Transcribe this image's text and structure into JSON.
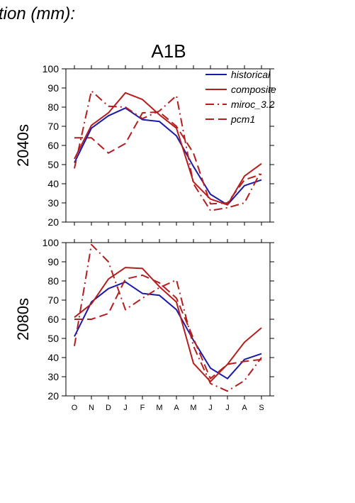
{
  "page_title": "tion (mm):",
  "scenario": "A1B",
  "colors": {
    "historical": "#1a1aaa",
    "model": "#b41e1e"
  },
  "chart_data": [
    {
      "type": "line",
      "row_label": "2040s",
      "categories": [
        "O",
        "N",
        "D",
        "J",
        "F",
        "M",
        "A",
        "M",
        "J",
        "J",
        "A",
        "S"
      ],
      "ylim": [
        20,
        100
      ],
      "yticks": [
        20,
        30,
        40,
        50,
        60,
        70,
        80,
        90,
        100
      ],
      "grid": false,
      "legend_position": "top-right",
      "series": [
        {
          "name": "historical",
          "style": "solid",
          "color": "#1a1aaa",
          "values": [
            51,
            69,
            75.5,
            79.5,
            73.5,
            72.5,
            65,
            49,
            34.5,
            29,
            39,
            42
          ]
        },
        {
          "name": "composite",
          "style": "solid",
          "color": "#b41e1e",
          "values": [
            53,
            70.5,
            77,
            87.5,
            84,
            76,
            69,
            41,
            32,
            29,
            44,
            50.5
          ]
        },
        {
          "name": "miroc_3.2",
          "style": "dashdot",
          "color": "#b41e1e",
          "values": [
            48,
            88.5,
            80.5,
            80,
            74,
            78,
            86,
            40,
            26,
            27.5,
            30,
            47
          ]
        },
        {
          "name": "pcm1",
          "style": "dash",
          "color": "#b41e1e",
          "values": [
            64,
            64,
            56,
            61,
            77,
            77.5,
            70,
            56,
            29.5,
            30,
            42,
            45
          ]
        }
      ]
    },
    {
      "type": "line",
      "row_label": "2080s",
      "categories": [
        "O",
        "N",
        "D",
        "J",
        "F",
        "M",
        "A",
        "M",
        "J",
        "J",
        "A",
        "S"
      ],
      "ylim": [
        20,
        100
      ],
      "yticks": [
        20,
        30,
        40,
        50,
        60,
        70,
        80,
        90,
        100
      ],
      "grid": false,
      "series": [
        {
          "name": "historical",
          "style": "solid",
          "color": "#1a1aaa",
          "values": [
            51,
            69,
            76,
            79.5,
            73.5,
            72.5,
            65,
            49,
            34.5,
            29,
            39,
            42
          ]
        },
        {
          "name": "composite",
          "style": "solid",
          "color": "#b41e1e",
          "values": [
            61,
            68,
            81,
            87,
            86.5,
            77,
            69,
            37,
            27.5,
            36.5,
            48,
            55.5
          ]
        },
        {
          "name": "miroc_3.2",
          "style": "dashdot",
          "color": "#b41e1e",
          "values": [
            46,
            99,
            90,
            65,
            71,
            76.5,
            80.5,
            46,
            26.5,
            22.5,
            28,
            40
          ]
        },
        {
          "name": "pcm1",
          "style": "dash",
          "color": "#b41e1e",
          "values": [
            60,
            60,
            63,
            81,
            83,
            79,
            71,
            50,
            29,
            36.5,
            38,
            39
          ]
        }
      ]
    }
  ]
}
